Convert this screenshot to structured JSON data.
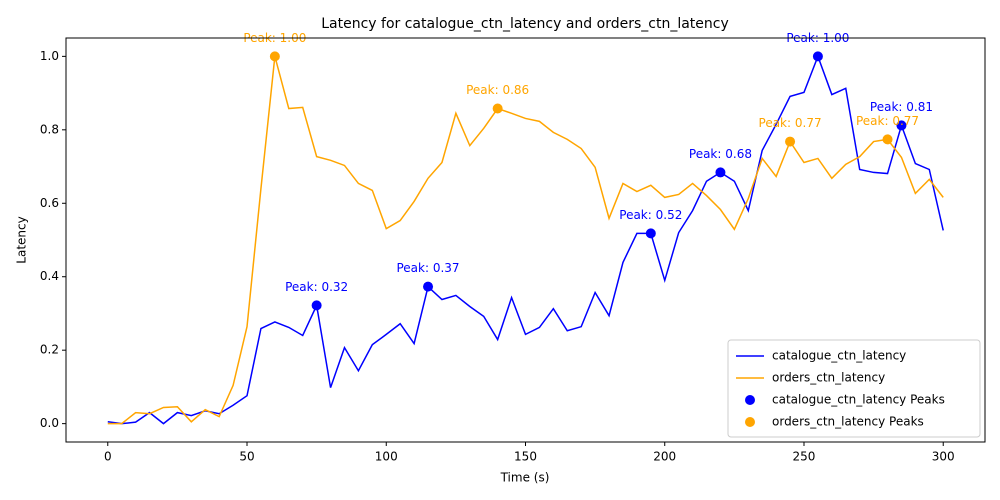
{
  "chart_data": {
    "type": "line",
    "title": "Latency for catalogue_ctn_latency and orders_ctn_latency",
    "x_label": "Time (s)",
    "y_label": "Latency",
    "x": [
      0,
      5,
      10,
      15,
      20,
      25,
      30,
      35,
      40,
      45,
      50,
      55,
      60,
      65,
      70,
      75,
      80,
      85,
      90,
      95,
      100,
      105,
      110,
      115,
      120,
      125,
      130,
      135,
      140,
      145,
      150,
      155,
      160,
      165,
      170,
      175,
      180,
      185,
      190,
      195,
      200,
      205,
      210,
      215,
      220,
      225,
      230,
      235,
      240,
      245,
      250,
      255,
      260,
      265,
      270,
      275,
      280,
      285,
      290,
      295,
      300
    ],
    "xlim": [
      -15,
      315
    ],
    "ylim": [
      -0.05,
      1.05
    ],
    "xticks": [
      0,
      50,
      100,
      150,
      200,
      250,
      300
    ],
    "yticks": [
      {
        "value": 0,
        "label": "0.0"
      },
      0.2,
      0.4,
      0.6,
      0.8,
      {
        "value": 1,
        "label": "1.0"
      }
    ],
    "legend": "lower right",
    "series": [
      {
        "name": "catalogue_ctn_latency",
        "type": "line",
        "color": "#0000ff",
        "values": [
          0.005,
          0,
          0.004,
          0.03,
          0,
          0.03,
          0.022,
          0.035,
          0.027,
          0.05,
          0.076,
          0.259,
          0.277,
          0.262,
          0.24,
          0.322,
          0.098,
          0.207,
          0.144,
          0.215,
          0.243,
          0.272,
          0.218,
          0.373,
          0.338,
          0.349,
          0.319,
          0.292,
          0.229,
          0.343,
          0.243,
          0.262,
          0.313,
          0.253,
          0.264,
          0.357,
          0.294,
          0.439,
          0.518,
          0.518,
          0.39,
          0.52,
          0.58,
          0.66,
          0.684,
          0.66,
          0.58,
          0.744,
          0.815,
          0.891,
          0.902,
          1.0,
          0.896,
          0.913,
          0.692,
          0.684,
          0.681,
          0.812,
          0.708,
          0.692,
          0.526
        ]
      },
      {
        "name": "orders_ctn_latency",
        "type": "line",
        "color": "#ffa500",
        "values": [
          0,
          0,
          0.03,
          0.027,
          0.044,
          0.046,
          0.005,
          0.038,
          0.019,
          0.104,
          0.264,
          0.64,
          1.0,
          0.858,
          0.861,
          0.727,
          0.717,
          0.703,
          0.654,
          0.635,
          0.531,
          0.553,
          0.605,
          0.668,
          0.711,
          0.845,
          0.757,
          0.804,
          0.858,
          0.845,
          0.831,
          0.823,
          0.793,
          0.774,
          0.749,
          0.698,
          0.559,
          0.654,
          0.632,
          0.649,
          0.616,
          0.624,
          0.654,
          0.621,
          0.583,
          0.529,
          0.613,
          0.722,
          0.673,
          0.768,
          0.711,
          0.722,
          0.668,
          0.706,
          0.727,
          0.768,
          0.774,
          0.725,
          0.627,
          0.665,
          0.616
        ]
      },
      {
        "name": "catalogue_ctn_latency Peaks",
        "type": "scatter",
        "color": "#0000ff",
        "x": [
          75,
          115,
          195,
          220,
          255,
          285
        ],
        "values": [
          0.322,
          0.373,
          0.518,
          0.684,
          1.0,
          0.812
        ],
        "value_labels": [
          "Peak: 0.32",
          "Peak: 0.37",
          "Peak: 0.52",
          "Peak: 0.68",
          "Peak: 1.00",
          "Peak: 0.81"
        ]
      },
      {
        "name": "orders_ctn_latency Peaks",
        "type": "scatter",
        "color": "#ffa500",
        "x": [
          60,
          140,
          245,
          280
        ],
        "values": [
          1.0,
          0.858,
          0.768,
          0.774
        ],
        "value_labels": [
          "Peak: 1.00",
          "Peak: 0.86",
          "Peak: 0.77",
          "Peak: 0.77"
        ]
      }
    ]
  }
}
